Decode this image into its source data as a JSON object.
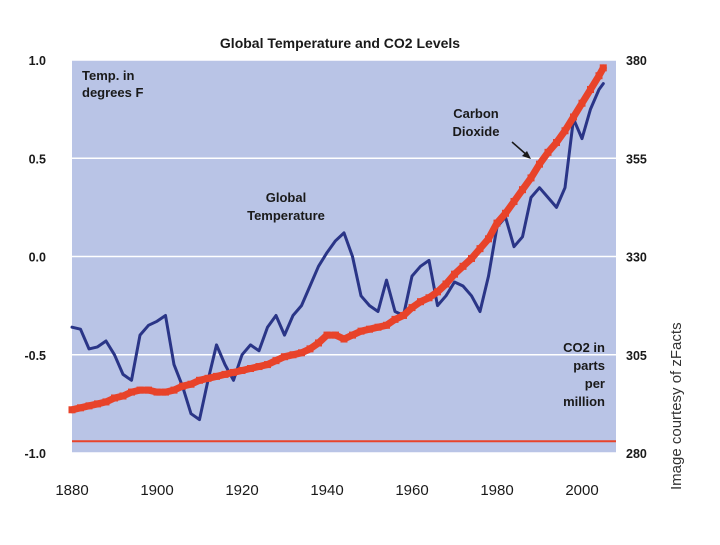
{
  "chart_data": {
    "type": "line",
    "title": "Global Temperature and CO2 Levels",
    "credit": "Image courtesy of zFacts",
    "x": [
      1880,
      1882,
      1884,
      1886,
      1888,
      1890,
      1892,
      1894,
      1896,
      1898,
      1900,
      1902,
      1904,
      1906,
      1908,
      1910,
      1912,
      1914,
      1916,
      1918,
      1920,
      1922,
      1924,
      1926,
      1928,
      1930,
      1932,
      1934,
      1936,
      1938,
      1940,
      1942,
      1944,
      1946,
      1948,
      1950,
      1952,
      1954,
      1956,
      1958,
      1960,
      1962,
      1964,
      1966,
      1968,
      1970,
      1972,
      1974,
      1976,
      1978,
      1980,
      1982,
      1984,
      1986,
      1988,
      1990,
      1992,
      1994,
      1996,
      1998,
      2000,
      2002,
      2004,
      2005
    ],
    "xlim": [
      1880,
      2008
    ],
    "x_ticks": [
      "1880",
      "1900",
      "1920",
      "1940",
      "1960",
      "1980",
      "2000"
    ],
    "left_axis": {
      "label_lines": [
        "Temp. in",
        "degrees F"
      ],
      "ylim": [
        -1.0,
        1.0
      ],
      "ticks": [
        "1.0",
        "0.5",
        "0.0",
        "-0.5",
        "-1.0"
      ]
    },
    "right_axis": {
      "label_lines": [
        "CO2 in",
        "parts",
        "per",
        "million"
      ],
      "ylim": [
        280,
        380
      ],
      "ticks": [
        "380",
        "355",
        "330",
        "305",
        "280"
      ]
    },
    "series": [
      {
        "name": "Global Temperature",
        "label_lines": [
          "Global",
          "Temperature"
        ],
        "axis": "left",
        "color": "#2a3587",
        "values": [
          -0.36,
          -0.37,
          -0.47,
          -0.46,
          -0.43,
          -0.5,
          -0.6,
          -0.63,
          -0.4,
          -0.35,
          -0.33,
          -0.3,
          -0.55,
          -0.66,
          -0.8,
          -0.83,
          -0.63,
          -0.45,
          -0.55,
          -0.63,
          -0.5,
          -0.45,
          -0.48,
          -0.36,
          -0.3,
          -0.4,
          -0.3,
          -0.25,
          -0.15,
          -0.05,
          0.02,
          0.08,
          0.12,
          0.0,
          -0.2,
          -0.25,
          -0.28,
          -0.12,
          -0.28,
          -0.3,
          -0.1,
          -0.05,
          -0.02,
          -0.25,
          -0.2,
          -0.13,
          -0.15,
          -0.2,
          -0.28,
          -0.1,
          0.15,
          0.2,
          0.05,
          0.1,
          0.3,
          0.35,
          0.3,
          0.25,
          0.35,
          0.7,
          0.6,
          0.75,
          0.85,
          0.88
        ]
      },
      {
        "name": "Carbon Dioxide",
        "label_lines": [
          "Carbon",
          "Dioxide"
        ],
        "axis": "right",
        "color": "#e8432a",
        "values": [
          291,
          291.5,
          292,
          292.5,
          293,
          294,
          294.5,
          295.5,
          296,
          296,
          295.5,
          295.5,
          296,
          297,
          297.5,
          298.5,
          299,
          299.5,
          300,
          300.5,
          301,
          301.5,
          302,
          302.5,
          303.5,
          304.5,
          305,
          305.5,
          306.5,
          308,
          310,
          310,
          309,
          310,
          311,
          311.5,
          312,
          312.5,
          314,
          315,
          317,
          318.5,
          319.5,
          321,
          323,
          325.5,
          327.5,
          329.5,
          332,
          334.5,
          338.5,
          341,
          344,
          347,
          350,
          353.5,
          356.5,
          359,
          362,
          365.5,
          369,
          372.5,
          376,
          378
        ]
      }
    ],
    "baseline_co2": 283
  }
}
